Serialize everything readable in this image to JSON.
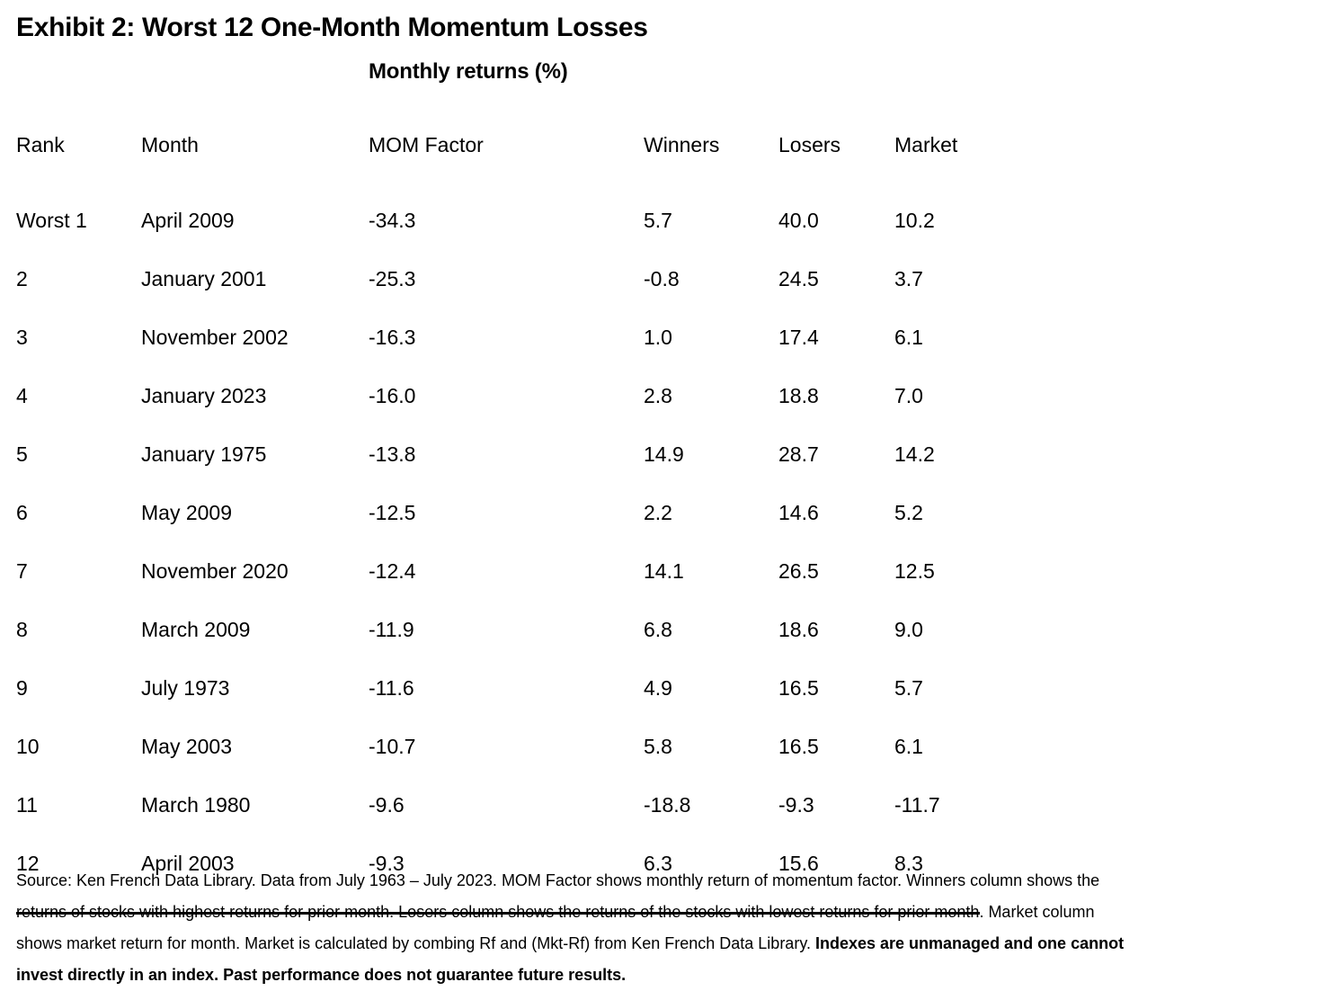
{
  "exhibit": {
    "title": "Exhibit 2: Worst 12 One-Month Momentum Losses",
    "subtitle": "Monthly returns (%)"
  },
  "table": {
    "columns": [
      "Rank",
      "Month",
      "MOM Factor",
      "Winners",
      "Losers",
      "Market"
    ],
    "rows": [
      [
        "Worst 1",
        "April 2009",
        "-34.3",
        "5.7",
        "40.0",
        "10.2"
      ],
      [
        "2",
        "January 2001",
        "-25.3",
        "-0.8",
        "24.5",
        "3.7"
      ],
      [
        "3",
        "November 2002",
        "-16.3",
        "1.0",
        "17.4",
        "6.1"
      ],
      [
        "4",
        "January 2023",
        "-16.0",
        "2.8",
        "18.8",
        "7.0"
      ],
      [
        "5",
        "January 1975",
        "-13.8",
        "14.9",
        "28.7",
        "14.2"
      ],
      [
        "6",
        "May 2009",
        "-12.5",
        "2.2",
        "14.6",
        "5.2"
      ],
      [
        "7",
        "November 2020",
        "-12.4",
        "14.1",
        "26.5",
        "12.5"
      ],
      [
        "8",
        "March 2009",
        "-11.9",
        "6.8",
        "18.6",
        "9.0"
      ],
      [
        "9",
        "July 1973",
        "-11.6",
        "4.9",
        "16.5",
        "5.7"
      ],
      [
        "10",
        "May 2003",
        "-10.7",
        "5.8",
        "16.5",
        "6.1"
      ],
      [
        "11",
        "March 1980",
        "-9.6",
        "-18.8",
        "-9.3",
        "-11.7"
      ],
      [
        "12",
        "April 2003",
        "-9.3",
        "6.3",
        "15.6",
        "8.3"
      ]
    ]
  },
  "footer": {
    "lines": [
      {
        "normal": "Source: Ken French Data Library. Data from July 1963 – July 2023. MOM Factor shows monthly return of momentum factor. Winners column shows the",
        "bold": ""
      },
      {
        "normal": "returns of stocks with highest returns for prior month. Losers column shows the returns of the stocks with lowest returns for prior month. Market column",
        "bold": ""
      },
      {
        "normal": "shows market return for month. Market is calculated by combing Rf and (Mkt-Rf) from Ken French Data Library. ",
        "bold": "Indexes are unmanaged and one cannot"
      },
      {
        "normal": "",
        "bold": "invest directly in an index. Past performance does not guarantee future results."
      }
    ]
  },
  "colors": {
    "text": "#000000",
    "background": "#ffffff",
    "rule": "#000000"
  },
  "chart_data": {
    "type": "table",
    "title": "Exhibit 2: Worst 12 One-Month Momentum Losses",
    "subtitle": "Monthly returns (%)",
    "columns": [
      "Rank",
      "Month",
      "MOM Factor",
      "Winners",
      "Losers",
      "Market"
    ],
    "rows": [
      [
        "Worst 1",
        "April 2009",
        -34.3,
        5.7,
        40.0,
        10.2
      ],
      [
        "2",
        "January 2001",
        -25.3,
        -0.8,
        24.5,
        3.7
      ],
      [
        "3",
        "November 2002",
        -16.3,
        1.0,
        17.4,
        6.1
      ],
      [
        "4",
        "January 2023",
        -16.0,
        2.8,
        18.8,
        7.0
      ],
      [
        "5",
        "January 1975",
        -13.8,
        14.9,
        28.7,
        14.2
      ],
      [
        "6",
        "May 2009",
        -12.5,
        2.2,
        14.6,
        5.2
      ],
      [
        "7",
        "November 2020",
        -12.4,
        14.1,
        26.5,
        12.5
      ],
      [
        "8",
        "March 2009",
        -11.9,
        6.8,
        18.6,
        9.0
      ],
      [
        "9",
        "July 1973",
        -11.6,
        4.9,
        16.5,
        5.7
      ],
      [
        "10",
        "May 2003",
        -10.7,
        5.8,
        16.5,
        6.1
      ],
      [
        "11",
        "March 1980",
        -9.6,
        -18.8,
        -9.3,
        -11.7
      ],
      [
        "12",
        "April 2003",
        -9.3,
        6.3,
        15.6,
        8.3
      ]
    ]
  }
}
